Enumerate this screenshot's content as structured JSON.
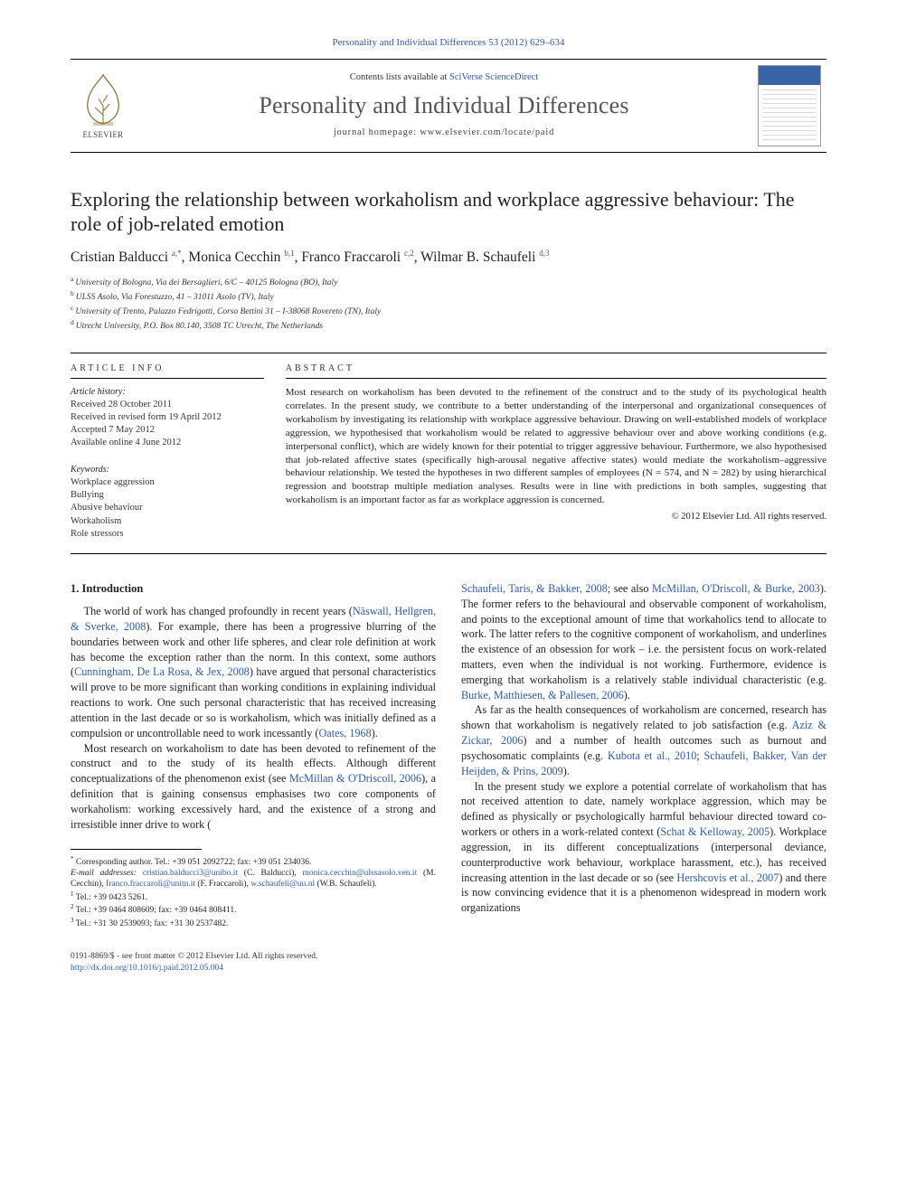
{
  "citation_top": "Personality and Individual Differences 53 (2012) 629–634",
  "header": {
    "contents_line_prefix": "Contents lists available at ",
    "contents_line_link": "SciVerse ScienceDirect",
    "journal_title": "Personality and Individual Differences",
    "journal_home_prefix": "journal homepage: ",
    "journal_home_url": "www.elsevier.com/locate/paid",
    "publisher_label": "ELSEVIER"
  },
  "article": {
    "title": "Exploring the relationship between workaholism and workplace aggressive behaviour: The role of job-related emotion",
    "authors_html": "Cristian Balducci <span class='sup'>a,</span><span class='sup star'>*</span>, Monica Cecchin <span class='sup'>b,1</span>, Franco Fraccaroli <span class='sup'>c,2</span>, Wilmar B. Schaufeli <span class='sup'>d,3</span>",
    "affiliations": [
      {
        "sup": "a",
        "text": "University of Bologna, Via dei Bersaglieri, 6/C – 40125 Bologna (BO), Italy"
      },
      {
        "sup": "b",
        "text": "ULSS Asolo, Via Forestuzzo, 41 – 31011 Asolo (TV), Italy"
      },
      {
        "sup": "c",
        "text": "University of Trento, Palazzo Fedrigotti, Corso Bettini 31 – I-38068 Rovereto (TN), Italy"
      },
      {
        "sup": "d",
        "text": "Utrecht University, P.O. Box 80.140, 3508 TC Utrecht, The Netherlands"
      }
    ]
  },
  "info": {
    "label": "ARTICLE INFO",
    "history_label": "Article history:",
    "history": [
      "Received 28 October 2011",
      "Received in revised form 19 April 2012",
      "Accepted 7 May 2012",
      "Available online 4 June 2012"
    ],
    "keywords_label": "Keywords:",
    "keywords": [
      "Workplace aggression",
      "Bullying",
      "Abusive behaviour",
      "Workaholism",
      "Role stressors"
    ]
  },
  "abstract": {
    "label": "ABSTRACT",
    "text": "Most research on workaholism has been devoted to the refinement of the construct and to the study of its psychological health correlates. In the present study, we contribute to a better understanding of the interpersonal and organizational consequences of workaholism by investigating its relationship with workplace aggressive behaviour. Drawing on well-established models of workplace aggression, we hypothesised that workaholism would be related to aggressive behaviour over and above working conditions (e.g. interpersonal conflict), which are widely known for their potential to trigger aggressive behaviour. Furthermore, we also hypothesised that job-related affective states (specifically high-arousal negative affective states) would mediate the workaholism–aggressive behaviour relationship. We tested the hypotheses in two different samples of employees (N = 574, and N = 282) by using hierarchical regression and bootstrap multiple mediation analyses. Results were in line with predictions in both samples, suggesting that workaholism is an important factor as far as workplace aggression is concerned.",
    "copyright": "© 2012 Elsevier Ltd. All rights reserved."
  },
  "body": {
    "section_heading": "1. Introduction",
    "p1a": "The world of work has changed profoundly in recent years (",
    "p1_ref1": "Näswall, Hellgren, & Sverke, 2008",
    "p1b": "). For example, there has been a progressive blurring of the boundaries between work and other life spheres, and clear role definition at work has become the exception rather than the norm. In this context, some authors (",
    "p1_ref2": "Cunningham, De La Rosa, & Jex, 2008",
    "p1c": ") have argued that personal characteristics will prove to be more significant than working conditions in explaining individual reactions to work. One such personal characteristic that has received increasing attention in the last decade or so is workaholism, which was initially defined as a compulsion or uncontrollable need to work incessantly (",
    "p1_ref3": "Oates, 1968",
    "p1d": ").",
    "p2a": "Most research on workaholism to date has been devoted to refinement of the construct and to the study of its health effects. Although different conceptualizations of the phenomenon exist (see ",
    "p2_ref1": "McMillan & O'Driscoll, 2006",
    "p2b": "), a definition that is gaining consensus emphasises two core components of workaholism: working excessively hard, and the existence of a strong and irresistible inner drive to work (",
    "p2_ref2": "Schaufeli, Taris, & Bakker, 2008",
    "p2c": "; see also ",
    "p2_ref3": "McMillan, O'Driscoll, & Burke, 2003",
    "p2d": "). The former refers to the behavioural and observable component of workaholism, and points to the exceptional amount of time that workaholics tend to allocate to work. The latter refers to the cognitive component of workaholism, and underlines the existence of an obsession for work – i.e. the persistent focus on work-related matters, even when the individual is not working. Furthermore, evidence is emerging that workaholism is a relatively stable individual characteristic (e.g. ",
    "p2_ref4": "Burke, Matthiesen, & Pallesen, 2006",
    "p2e": ").",
    "p3a": "As far as the health consequences of workaholism are concerned, research has shown that workaholism is negatively related to job satisfaction (e.g. ",
    "p3_ref1": "Aziz & Zickar, 2006",
    "p3b": ") and a number of health outcomes such as burnout and psychosomatic complaints (e.g. ",
    "p3_ref2": "Kubota et al., 2010",
    "p3c": "; ",
    "p3_ref3": "Schaufeli, Bakker, Van der Heijden, & Prins, 2009",
    "p3d": ").",
    "p4a": "In the present study we explore a potential correlate of workaholism that has not received attention to date, namely workplace aggression, which may be defined as physically or psychologically harmful behaviour directed toward co-workers or others in a work-related context (",
    "p4_ref1": "Schat & Kelloway, 2005",
    "p4b": "). Workplace aggression, in its different conceptualizations (interpersonal deviance, counterproductive work behaviour, workplace harassment, etc.), has received increasing attention in the last decade or so (see ",
    "p4_ref2": "Hershcovis et al., 2007",
    "p4c": ") and there is now convincing evidence that it is a phenomenon widespread in modern work organizations"
  },
  "footnotes": {
    "corr": "Corresponding author. Tel.: +39 051 2092722; fax: +39 051 234036.",
    "email_label": "E-mail addresses:",
    "emails": [
      {
        "addr": "cristian.balducci3@unibo.it",
        "who": "(C. Balducci)"
      },
      {
        "addr": "monica.cecchin@ulssasolo.ven.it",
        "who": "(M. Cecchin)"
      },
      {
        "addr": "franco.fraccaroli@unitn.it",
        "who": "(F. Fraccaroli)"
      },
      {
        "addr": "w.schaufeli@uu.nl",
        "who": "(W.B. Schaufeli)"
      }
    ],
    "notes": [
      {
        "sup": "1",
        "text": "Tel.: +39 0423 5261."
      },
      {
        "sup": "2",
        "text": "Tel.: +39 0464 808609; fax: +39 0464 808411."
      },
      {
        "sup": "3",
        "text": "Tel.: +31 30 2539093; fax: +31 30 2537482."
      }
    ]
  },
  "footer": {
    "left1": "0191-8869/$ - see front matter © 2012 Elsevier Ltd. All rights reserved.",
    "left2": "http://dx.doi.org/10.1016/j.paid.2012.05.004"
  },
  "colors": {
    "link": "#2b5aad",
    "text": "#222222",
    "rule": "#000000"
  }
}
